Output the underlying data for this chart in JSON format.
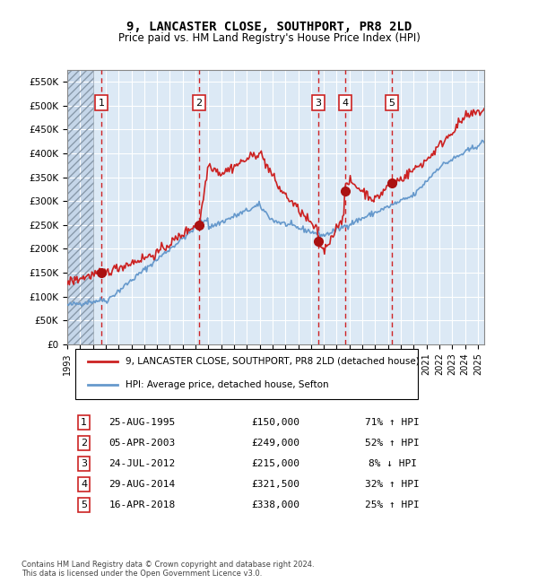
{
  "title": "9, LANCASTER CLOSE, SOUTHPORT, PR8 2LD",
  "subtitle": "Price paid vs. HM Land Registry's House Price Index (HPI)",
  "footer1": "Contains HM Land Registry data © Crown copyright and database right 2024.",
  "footer2": "This data is licensed under the Open Government Licence v3.0.",
  "legend_line1": "9, LANCASTER CLOSE, SOUTHPORT, PR8 2LD (detached house)",
  "legend_line2": "HPI: Average price, detached house, Sefton",
  "sales": [
    {
      "num": 1,
      "date": "25-AUG-1995",
      "price": 150000,
      "hpi_change": "71% ↑ HPI",
      "year": 1995.65
    },
    {
      "num": 2,
      "date": "05-APR-2003",
      "price": 249000,
      "hpi_change": "52% ↑ HPI",
      "year": 2003.26
    },
    {
      "num": 3,
      "date": "24-JUL-2012",
      "price": 215000,
      "hpi_change": "8% ↓ HPI",
      "year": 2012.56
    },
    {
      "num": 4,
      "date": "29-AUG-2014",
      "price": 321500,
      "hpi_change": "32% ↑ HPI",
      "year": 2014.66
    },
    {
      "num": 5,
      "date": "16-APR-2018",
      "price": 338000,
      "hpi_change": "25% ↑ HPI",
      "year": 2018.29
    }
  ],
  "hpi_color": "#6699cc",
  "price_color": "#cc2222",
  "dot_color": "#aa1111",
  "background_color": "#dce9f5",
  "hatch_color": "#b0c4de",
  "grid_color": "#ffffff",
  "vline_color": "#cc0000",
  "box_color": "#cc2222",
  "xlim": [
    1993,
    2025.5
  ],
  "ylim": [
    0,
    575000
  ],
  "yticks": [
    0,
    50000,
    100000,
    150000,
    200000,
    250000,
    300000,
    350000,
    400000,
    450000,
    500000,
    550000
  ],
  "xticks": [
    1993,
    1994,
    1995,
    1996,
    1997,
    1998,
    1999,
    2000,
    2001,
    2002,
    2003,
    2004,
    2005,
    2006,
    2007,
    2008,
    2009,
    2010,
    2011,
    2012,
    2013,
    2014,
    2015,
    2016,
    2017,
    2018,
    2019,
    2020,
    2021,
    2022,
    2023,
    2024,
    2025
  ]
}
